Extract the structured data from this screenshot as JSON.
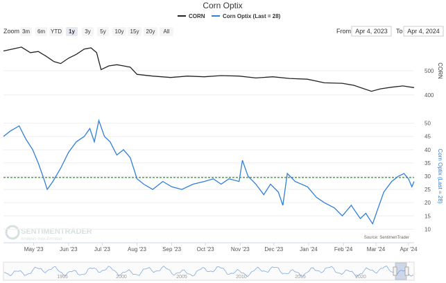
{
  "title": "Corn Optix",
  "legend": [
    {
      "name": "CORN",
      "color": "#222222"
    },
    {
      "name": "Corn Optix (Last = 28)",
      "color": "#2f7ed8"
    }
  ],
  "zoom": {
    "label": "Zoom",
    "buttons": [
      "3m",
      "6m",
      "YTD",
      "1y",
      "3y",
      "5y",
      "10y",
      "15y",
      "20y",
      "All"
    ],
    "selected": "1y"
  },
  "range": {
    "from_label": "From",
    "from_value": "Apr 4, 2023",
    "to_label": "To",
    "to_value": "Apr 4, 2024"
  },
  "watermark": {
    "name": "SENTIMENTRADER",
    "tagline": "Analysis over Emotion"
  },
  "source_note": "Source: SentimenTrader",
  "colors": {
    "corn_line": "#222222",
    "optix_line": "#2f7ed8",
    "reference_line": "#2e8b2e"
  },
  "chart_data": {
    "type": "line",
    "title": "Corn Optix",
    "x_range": [
      "2023-04-04",
      "2024-04-04"
    ],
    "x_tick_labels": [
      "May '23",
      "Jun '23",
      "Jul '23",
      "Aug '23",
      "Sep '23",
      "Oct '23",
      "Nov '23",
      "Dec '23",
      "Jan '24",
      "Feb '24",
      "Mar '24",
      "Apr '24"
    ],
    "panels": [
      {
        "series_name": "CORN",
        "y_label": "CORN",
        "y_ticks": [
          400,
          500
        ],
        "ylim": [
          385,
          615
        ],
        "points": [
          [
            "2023-04-04",
            582
          ],
          [
            "2023-04-12",
            590
          ],
          [
            "2023-04-20",
            598
          ],
          [
            "2023-04-28",
            575
          ],
          [
            "2023-05-05",
            580
          ],
          [
            "2023-05-12",
            560
          ],
          [
            "2023-05-19",
            538
          ],
          [
            "2023-05-25",
            530
          ],
          [
            "2023-06-01",
            552
          ],
          [
            "2023-06-08",
            568
          ],
          [
            "2023-06-15",
            590
          ],
          [
            "2023-06-21",
            595
          ],
          [
            "2023-06-26",
            575
          ],
          [
            "2023-06-30",
            505
          ],
          [
            "2023-07-07",
            520
          ],
          [
            "2023-07-14",
            525
          ],
          [
            "2023-07-20",
            520
          ],
          [
            "2023-07-26",
            515
          ],
          [
            "2023-08-01",
            485
          ],
          [
            "2023-08-15",
            478
          ],
          [
            "2023-08-31",
            472
          ],
          [
            "2023-09-15",
            478
          ],
          [
            "2023-09-30",
            475
          ],
          [
            "2023-10-15",
            480
          ],
          [
            "2023-10-31",
            478
          ],
          [
            "2023-11-15",
            470
          ],
          [
            "2023-11-30",
            475
          ],
          [
            "2023-12-15",
            468
          ],
          [
            "2023-12-31",
            465
          ],
          [
            "2024-01-15",
            450
          ],
          [
            "2024-01-31",
            448
          ],
          [
            "2024-02-10",
            440
          ],
          [
            "2024-02-26",
            415
          ],
          [
            "2024-03-05",
            425
          ],
          [
            "2024-03-15",
            432
          ],
          [
            "2024-03-25",
            437
          ],
          [
            "2024-04-04",
            430
          ]
        ]
      },
      {
        "series_name": "Corn Optix (Last = 28)",
        "y_label": "Corn Optix (Last = 28)",
        "y_ticks": [
          10,
          15,
          20,
          25,
          30,
          35,
          40,
          45,
          50
        ],
        "ylim": [
          8,
          52
        ],
        "reference_line": 29.5,
        "points": [
          [
            "2023-04-04",
            45
          ],
          [
            "2023-04-10",
            47
          ],
          [
            "2023-04-18",
            49
          ],
          [
            "2023-04-24",
            44
          ],
          [
            "2023-04-30",
            40
          ],
          [
            "2023-05-05",
            35
          ],
          [
            "2023-05-10",
            29
          ],
          [
            "2023-05-13",
            25
          ],
          [
            "2023-05-18",
            28
          ],
          [
            "2023-05-25",
            33
          ],
          [
            "2023-06-01",
            39
          ],
          [
            "2023-06-08",
            43
          ],
          [
            "2023-06-15",
            45
          ],
          [
            "2023-06-20",
            48
          ],
          [
            "2023-06-24",
            43
          ],
          [
            "2023-06-28",
            51
          ],
          [
            "2023-07-03",
            45
          ],
          [
            "2023-07-08",
            43
          ],
          [
            "2023-07-14",
            38
          ],
          [
            "2023-07-20",
            40
          ],
          [
            "2023-07-26",
            37
          ],
          [
            "2023-08-01",
            29
          ],
          [
            "2023-08-07",
            27
          ],
          [
            "2023-08-15",
            25
          ],
          [
            "2023-08-24",
            28
          ],
          [
            "2023-09-01",
            26
          ],
          [
            "2023-09-10",
            25
          ],
          [
            "2023-09-20",
            27
          ],
          [
            "2023-09-30",
            28
          ],
          [
            "2023-10-08",
            29
          ],
          [
            "2023-10-15",
            27
          ],
          [
            "2023-10-22",
            29
          ],
          [
            "2023-10-31",
            28
          ],
          [
            "2023-11-03",
            36
          ],
          [
            "2023-11-08",
            30
          ],
          [
            "2023-11-15",
            27
          ],
          [
            "2023-11-22",
            23
          ],
          [
            "2023-11-28",
            27
          ],
          [
            "2023-12-05",
            24
          ],
          [
            "2023-12-09",
            19
          ],
          [
            "2023-12-13",
            31
          ],
          [
            "2023-12-20",
            28
          ],
          [
            "2023-12-31",
            26
          ],
          [
            "2024-01-08",
            22
          ],
          [
            "2024-01-15",
            20
          ],
          [
            "2024-01-24",
            18
          ],
          [
            "2024-01-31",
            15
          ],
          [
            "2024-02-08",
            19
          ],
          [
            "2024-02-16",
            14
          ],
          [
            "2024-02-21",
            16
          ],
          [
            "2024-02-27",
            12
          ],
          [
            "2024-03-03",
            18
          ],
          [
            "2024-03-08",
            24
          ],
          [
            "2024-03-15",
            28
          ],
          [
            "2024-03-21",
            30
          ],
          [
            "2024-03-26",
            31
          ],
          [
            "2024-03-30",
            29
          ],
          [
            "2024-04-02",
            26
          ],
          [
            "2024-04-04",
            28
          ]
        ]
      }
    ],
    "navigator": {
      "x_tick_labels": [
        "1995",
        "2000",
        "2005",
        "2010",
        "2015",
        "2020"
      ]
    }
  }
}
